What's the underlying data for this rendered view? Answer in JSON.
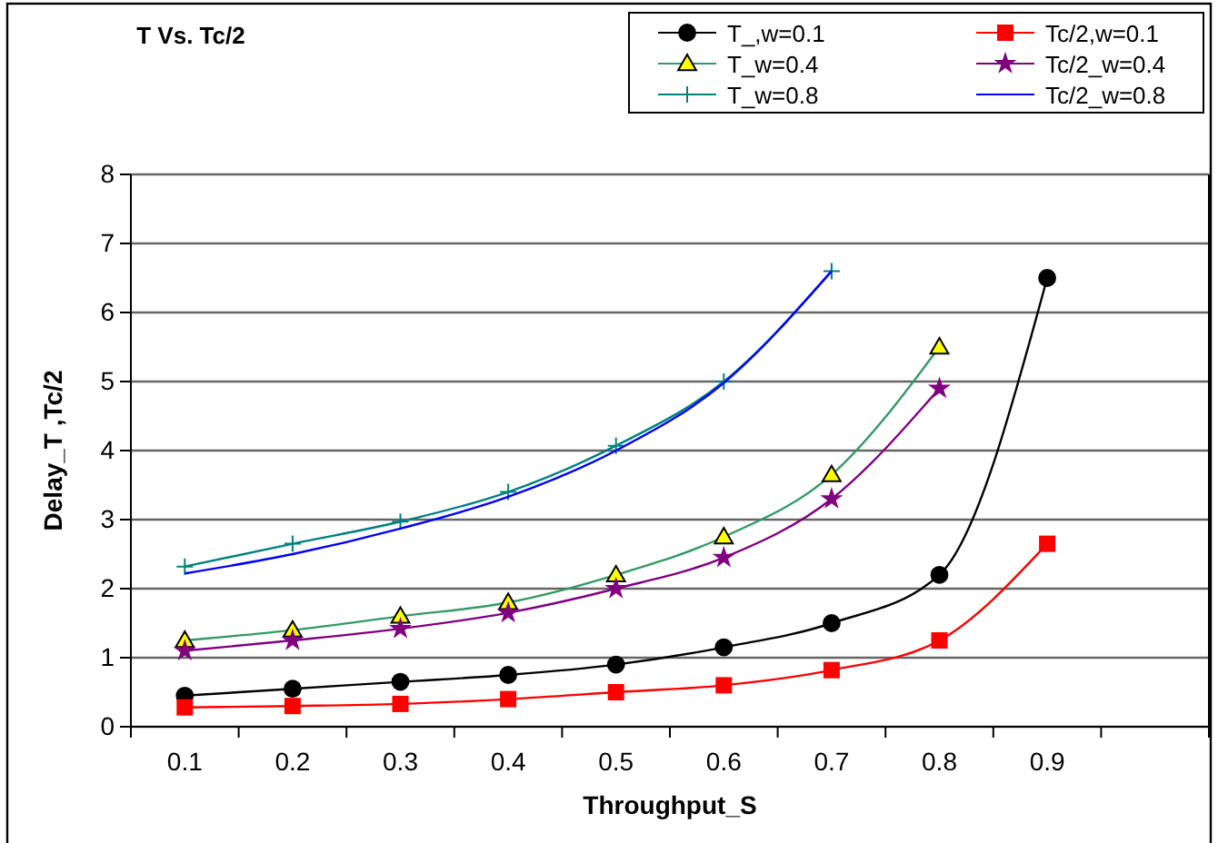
{
  "chart_data": {
    "type": "line",
    "title": "T Vs. Tc/2",
    "xlabel": "Throughput_S",
    "ylabel": "Delay_T ,Tc/2",
    "categories": [
      "0.1",
      "0.2",
      "0.3",
      "0.4",
      "0.5",
      "0.6",
      "0.7",
      "0.8",
      "0.9",
      null
    ],
    "ylim": [
      0,
      8
    ],
    "yticks": [
      0,
      1,
      2,
      3,
      4,
      5,
      6,
      7,
      8
    ],
    "grid": "y",
    "legend": "top right",
    "series": [
      {
        "name": "T_,w=0.1",
        "color": "#000000",
        "marker": "circle",
        "values": [
          0.45,
          0.55,
          0.65,
          0.75,
          0.9,
          1.15,
          1.5,
          2.2,
          6.5,
          null
        ]
      },
      {
        "name": "Tc/2,w=0.1",
        "color": "#ff0000",
        "marker": "square",
        "values": [
          0.28,
          0.3,
          0.33,
          0.4,
          0.5,
          0.6,
          0.82,
          1.25,
          2.65,
          null
        ]
      },
      {
        "name": "T_w=0.4",
        "color": "#339966",
        "marker": "triangle",
        "values": [
          1.25,
          1.4,
          1.6,
          1.8,
          2.2,
          2.75,
          3.65,
          5.5,
          null,
          null
        ]
      },
      {
        "name": "Tc/2_w=0.4",
        "color": "#800080",
        "marker": "star",
        "values": [
          1.1,
          1.25,
          1.42,
          1.65,
          2.0,
          2.45,
          3.3,
          4.9,
          null,
          null
        ]
      },
      {
        "name": "T_w=0.8",
        "color": "#008080",
        "marker": "cross",
        "values": [
          2.32,
          2.65,
          2.97,
          3.4,
          4.07,
          5.0,
          6.6,
          null,
          null,
          null
        ]
      },
      {
        "name": "Tc/2_w=0.8",
        "color": "#0000ff",
        "marker": "none",
        "values": [
          2.22,
          2.5,
          2.87,
          3.33,
          4.0,
          4.98,
          6.6,
          null,
          null,
          null
        ]
      }
    ]
  }
}
